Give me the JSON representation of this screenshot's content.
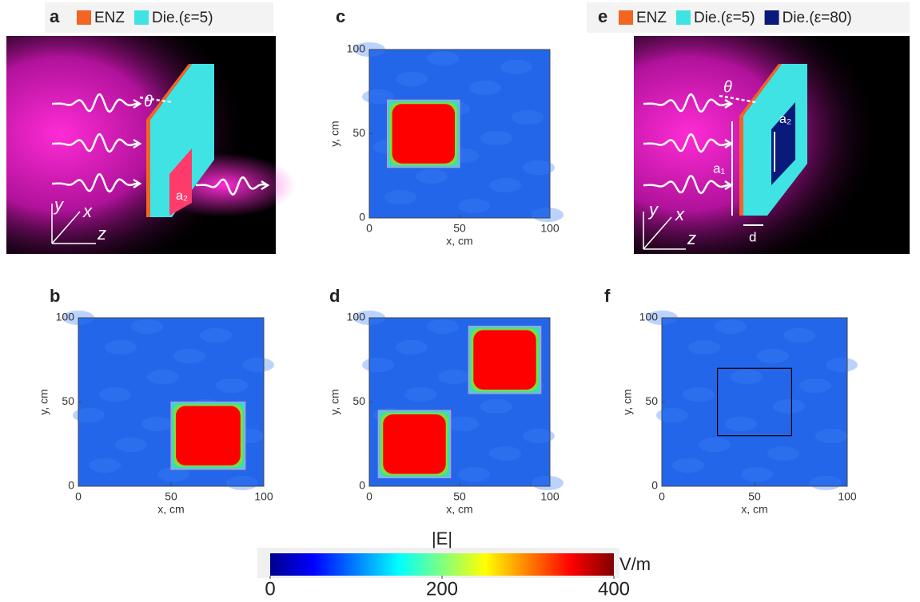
{
  "panels": [
    {
      "label": "a",
      "legend": [
        {
          "name": "ENZ",
          "color": "#f26522"
        },
        {
          "name": "Die.(ε=5)",
          "color": "#3fe3e3"
        }
      ],
      "annotations": [
        "θ",
        "a₂",
        "y",
        "x",
        "z"
      ]
    },
    {
      "label": "b",
      "plot": {
        "xlabel": "x, cm",
        "ylabel": "y, cm",
        "xlim": [
          0,
          100
        ],
        "ylim": [
          0,
          100
        ],
        "xticks": [
          0,
          50,
          100
        ],
        "yticks": [
          0,
          50,
          100
        ],
        "regions": [
          {
            "x": [
              50,
              90
            ],
            "y": [
              10,
              50
            ],
            "fill": "#ff0000",
            "edge": "#d48ad4"
          }
        ]
      }
    },
    {
      "label": "c",
      "plot": {
        "xlabel": "x, cm",
        "ylabel": "y, cm",
        "xlim": [
          0,
          100
        ],
        "ylim": [
          0,
          100
        ],
        "xticks": [
          0,
          50,
          100
        ],
        "yticks": [
          0,
          50,
          100
        ],
        "regions": [
          {
            "x": [
              10,
              50
            ],
            "y": [
              30,
              70
            ],
            "fill": "#ff0000",
            "edge": "#d48ad4"
          }
        ]
      }
    },
    {
      "label": "d",
      "plot": {
        "xlabel": "x, cm",
        "ylabel": "y, cm",
        "xlim": [
          0,
          100
        ],
        "ylim": [
          0,
          100
        ],
        "xticks": [
          0,
          50,
          100
        ],
        "yticks": [
          0,
          50,
          100
        ],
        "regions": [
          {
            "x": [
              5,
              45
            ],
            "y": [
              5,
              45
            ],
            "fill": "#ff0000",
            "edge": "#d48ad4"
          },
          {
            "x": [
              55,
              95
            ],
            "y": [
              55,
              95
            ],
            "fill": "#ff0000",
            "edge": "#d48ad4"
          }
        ]
      }
    },
    {
      "label": "e",
      "legend": [
        {
          "name": "ENZ",
          "color": "#f26522"
        },
        {
          "name": "Die.(ε=5)",
          "color": "#3fe3e3"
        },
        {
          "name": "Die.(ε=80)",
          "color": "#0a1a7a"
        }
      ],
      "annotations": [
        "θ",
        "a₁",
        "a₂",
        "d",
        "y",
        "x",
        "z"
      ]
    },
    {
      "label": "f",
      "plot": {
        "xlabel": "x, cm",
        "ylabel": "y, cm",
        "xlim": [
          0,
          100
        ],
        "ylim": [
          0,
          100
        ],
        "xticks": [
          0,
          50,
          100
        ],
        "yticks": [
          0,
          50,
          100
        ],
        "regions": [
          {
            "x": [
              30,
              70
            ],
            "y": [
              30,
              70
            ],
            "fill": null,
            "edge": "#000000"
          }
        ]
      }
    }
  ],
  "colorbar": {
    "title": "|E|",
    "unit": "V/m",
    "lim": [
      0,
      400
    ],
    "ticks": [
      0,
      200,
      400
    ],
    "colormap": "jet"
  }
}
